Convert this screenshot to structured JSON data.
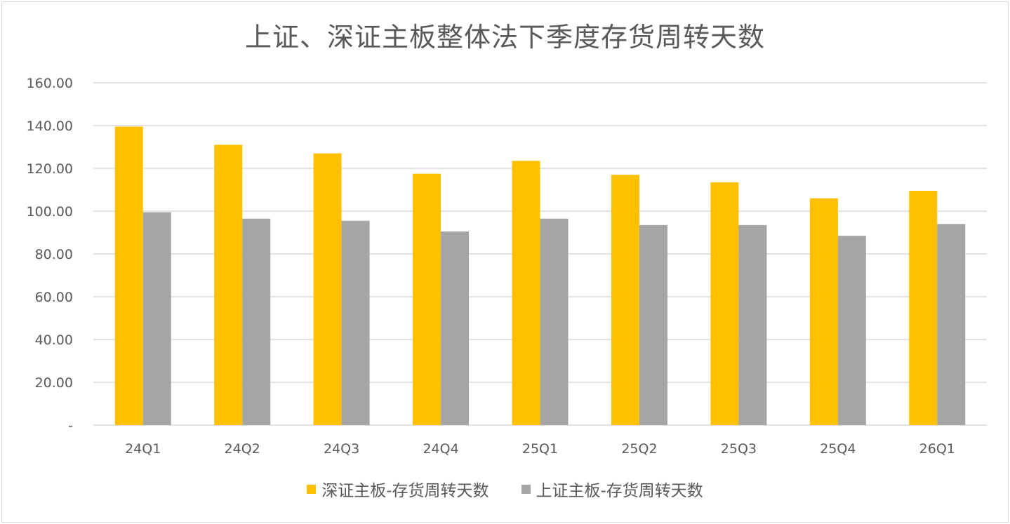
{
  "chart_data": {
    "type": "bar",
    "title": "上证、深证主板整体法下季度存货周转天数",
    "categories": [
      "24Q1",
      "24Q2",
      "24Q3",
      "24Q4",
      "25Q1",
      "25Q2",
      "25Q3",
      "25Q4",
      "26Q1"
    ],
    "series": [
      {
        "name": "深证主板-存货周转天数",
        "color": "#FFC000",
        "values": [
          139.5,
          131.0,
          127.0,
          117.5,
          123.5,
          117.0,
          113.5,
          106.0,
          109.5
        ]
      },
      {
        "name": "上证主板-存货周转天数",
        "color": "#A5A5A5",
        "values": [
          99.5,
          96.5,
          95.5,
          90.5,
          96.5,
          93.5,
          93.5,
          88.5,
          94.0
        ]
      }
    ],
    "ylim": [
      0,
      160
    ],
    "yticks": [
      0,
      20,
      40,
      60,
      80,
      100,
      120,
      140,
      160
    ],
    "ytick_labels": [
      "-",
      "20.00",
      "40.00",
      "60.00",
      "80.00",
      "100.00",
      "120.00",
      "140.00",
      "160.00"
    ],
    "grid": true,
    "legend_position": "bottom"
  }
}
